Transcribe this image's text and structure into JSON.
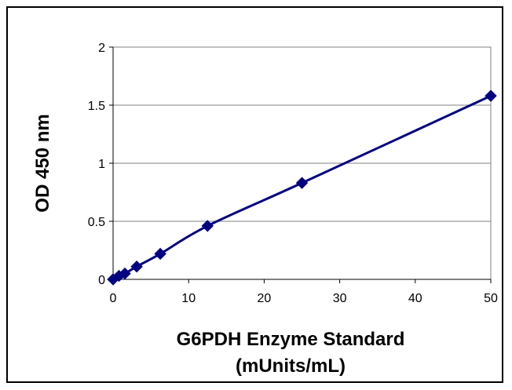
{
  "chart_data": {
    "type": "scatter",
    "xlabel_lines": [
      "G6PDH Enzyme Standard",
      "(mUnits/mL)"
    ],
    "ylabel": "OD 450 nm",
    "xlim": [
      0,
      50
    ],
    "ylim": [
      0,
      2
    ],
    "x_ticks": [
      0,
      10,
      20,
      30,
      40,
      50
    ],
    "y_ticks": [
      0,
      0.5,
      1,
      1.5,
      2
    ],
    "x_tick_labels": [
      "0",
      "10",
      "20",
      "30",
      "40",
      "50"
    ],
    "y_tick_labels": [
      "0",
      "0.5",
      "1",
      "1.5",
      "2"
    ],
    "grid": {
      "horizontal": true,
      "vertical": false
    },
    "series": [
      {
        "marker": "diamond",
        "line": "smooth",
        "color": "#000080",
        "points": [
          {
            "x": 0,
            "y": 0.0
          },
          {
            "x": 0.78,
            "y": 0.03
          },
          {
            "x": 1.56,
            "y": 0.05
          },
          {
            "x": 3.13,
            "y": 0.11
          },
          {
            "x": 6.25,
            "y": 0.22
          },
          {
            "x": 12.5,
            "y": 0.46
          },
          {
            "x": 25,
            "y": 0.83
          },
          {
            "x": 50,
            "y": 1.58
          }
        ]
      }
    ]
  }
}
